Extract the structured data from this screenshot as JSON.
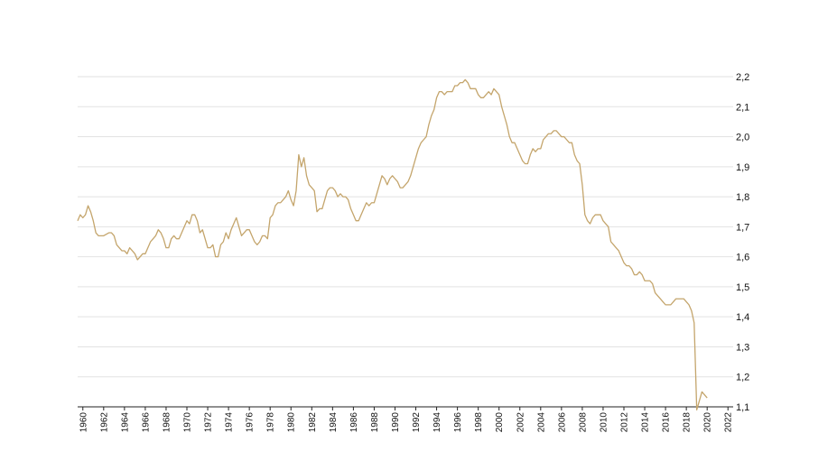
{
  "chart_data": {
    "type": "line",
    "title": "",
    "xlabel": "",
    "ylabel": "",
    "ylim": [
      1.1,
      2.2
    ],
    "xlim": [
      1959.5,
      2022.5
    ],
    "grid": true,
    "y_ticks": [
      {
        "value": 1.1,
        "label": "1,1"
      },
      {
        "value": 1.2,
        "label": "1,2"
      },
      {
        "value": 1.3,
        "label": "1,3"
      },
      {
        "value": 1.4,
        "label": "1,4"
      },
      {
        "value": 1.5,
        "label": "1,5"
      },
      {
        "value": 1.6,
        "label": "1,6"
      },
      {
        "value": 1.7,
        "label": "1,7"
      },
      {
        "value": 1.8,
        "label": "1,8"
      },
      {
        "value": 1.9,
        "label": "1,9"
      },
      {
        "value": 2.0,
        "label": "2,0"
      },
      {
        "value": 2.1,
        "label": "2,1"
      },
      {
        "value": 2.2,
        "label": "2,2"
      }
    ],
    "x_ticks": [
      1960,
      1962,
      1964,
      1966,
      1968,
      1970,
      1972,
      1974,
      1976,
      1978,
      1980,
      1982,
      1984,
      1986,
      1988,
      1990,
      1992,
      1994,
      1996,
      1998,
      2000,
      2002,
      2004,
      2006,
      2008,
      2010,
      2012,
      2014,
      2016,
      2018,
      2020,
      2022
    ],
    "series": [
      {
        "color": "#c4a56c",
        "points": [
          [
            1959.5,
            1.72
          ],
          [
            1959.75,
            1.74
          ],
          [
            1960.0,
            1.73
          ],
          [
            1960.25,
            1.74
          ],
          [
            1960.5,
            1.77
          ],
          [
            1960.75,
            1.75
          ],
          [
            1961.0,
            1.72
          ],
          [
            1961.25,
            1.68
          ],
          [
            1961.5,
            1.67
          ],
          [
            1962.0,
            1.67
          ],
          [
            1962.5,
            1.68
          ],
          [
            1962.75,
            1.68
          ],
          [
            1963.0,
            1.67
          ],
          [
            1963.25,
            1.64
          ],
          [
            1963.5,
            1.63
          ],
          [
            1963.75,
            1.62
          ],
          [
            1964.0,
            1.62
          ],
          [
            1964.25,
            1.61
          ],
          [
            1964.5,
            1.63
          ],
          [
            1964.75,
            1.62
          ],
          [
            1965.0,
            1.61
          ],
          [
            1965.25,
            1.59
          ],
          [
            1965.5,
            1.6
          ],
          [
            1965.75,
            1.61
          ],
          [
            1966.0,
            1.61
          ],
          [
            1966.25,
            1.63
          ],
          [
            1966.5,
            1.65
          ],
          [
            1966.75,
            1.66
          ],
          [
            1967.0,
            1.67
          ],
          [
            1967.25,
            1.69
          ],
          [
            1967.5,
            1.68
          ],
          [
            1967.75,
            1.66
          ],
          [
            1968.0,
            1.63
          ],
          [
            1968.25,
            1.63
          ],
          [
            1968.5,
            1.66
          ],
          [
            1968.75,
            1.67
          ],
          [
            1969.0,
            1.66
          ],
          [
            1969.25,
            1.66
          ],
          [
            1969.5,
            1.68
          ],
          [
            1969.75,
            1.7
          ],
          [
            1970.0,
            1.72
          ],
          [
            1970.25,
            1.71
          ],
          [
            1970.5,
            1.74
          ],
          [
            1970.75,
            1.74
          ],
          [
            1971.0,
            1.72
          ],
          [
            1971.25,
            1.68
          ],
          [
            1971.5,
            1.69
          ],
          [
            1971.75,
            1.66
          ],
          [
            1972.0,
            1.63
          ],
          [
            1972.25,
            1.63
          ],
          [
            1972.5,
            1.64
          ],
          [
            1972.75,
            1.6
          ],
          [
            1973.0,
            1.6
          ],
          [
            1973.25,
            1.64
          ],
          [
            1973.5,
            1.65
          ],
          [
            1973.75,
            1.68
          ],
          [
            1974.0,
            1.66
          ],
          [
            1974.25,
            1.69
          ],
          [
            1974.5,
            1.71
          ],
          [
            1974.75,
            1.73
          ],
          [
            1975.0,
            1.7
          ],
          [
            1975.25,
            1.67
          ],
          [
            1975.5,
            1.68
          ],
          [
            1975.75,
            1.69
          ],
          [
            1976.0,
            1.69
          ],
          [
            1976.25,
            1.67
          ],
          [
            1976.5,
            1.65
          ],
          [
            1976.75,
            1.64
          ],
          [
            1977.0,
            1.65
          ],
          [
            1977.25,
            1.67
          ],
          [
            1977.5,
            1.67
          ],
          [
            1977.75,
            1.66
          ],
          [
            1978.0,
            1.73
          ],
          [
            1978.25,
            1.74
          ],
          [
            1978.5,
            1.77
          ],
          [
            1978.75,
            1.78
          ],
          [
            1979.0,
            1.78
          ],
          [
            1979.25,
            1.79
          ],
          [
            1979.5,
            1.8
          ],
          [
            1979.75,
            1.82
          ],
          [
            1980.0,
            1.79
          ],
          [
            1980.25,
            1.77
          ],
          [
            1980.5,
            1.82
          ],
          [
            1980.75,
            1.94
          ],
          [
            1981.0,
            1.9
          ],
          [
            1981.25,
            1.93
          ],
          [
            1981.5,
            1.87
          ],
          [
            1981.75,
            1.84
          ],
          [
            1982.0,
            1.83
          ],
          [
            1982.25,
            1.82
          ],
          [
            1982.5,
            1.75
          ],
          [
            1982.75,
            1.76
          ],
          [
            1983.0,
            1.76
          ],
          [
            1983.25,
            1.79
          ],
          [
            1983.5,
            1.82
          ],
          [
            1983.75,
            1.83
          ],
          [
            1984.0,
            1.83
          ],
          [
            1984.25,
            1.82
          ],
          [
            1984.5,
            1.8
          ],
          [
            1984.75,
            1.81
          ],
          [
            1985.0,
            1.8
          ],
          [
            1985.25,
            1.8
          ],
          [
            1985.5,
            1.79
          ],
          [
            1985.75,
            1.76
          ],
          [
            1986.0,
            1.74
          ],
          [
            1986.25,
            1.72
          ],
          [
            1986.5,
            1.72
          ],
          [
            1986.75,
            1.74
          ],
          [
            1987.0,
            1.76
          ],
          [
            1987.25,
            1.78
          ],
          [
            1987.5,
            1.77
          ],
          [
            1987.75,
            1.78
          ],
          [
            1988.0,
            1.78
          ],
          [
            1988.25,
            1.81
          ],
          [
            1988.5,
            1.84
          ],
          [
            1988.75,
            1.87
          ],
          [
            1989.0,
            1.86
          ],
          [
            1989.25,
            1.84
          ],
          [
            1989.5,
            1.86
          ],
          [
            1989.75,
            1.87
          ],
          [
            1990.0,
            1.86
          ],
          [
            1990.25,
            1.85
          ],
          [
            1990.5,
            1.83
          ],
          [
            1990.75,
            1.83
          ],
          [
            1991.0,
            1.84
          ],
          [
            1991.25,
            1.85
          ],
          [
            1991.5,
            1.87
          ],
          [
            1991.75,
            1.9
          ],
          [
            1992.0,
            1.93
          ],
          [
            1992.25,
            1.96
          ],
          [
            1992.5,
            1.98
          ],
          [
            1992.75,
            1.99
          ],
          [
            1993.0,
            2.0
          ],
          [
            1993.25,
            2.04
          ],
          [
            1993.5,
            2.07
          ],
          [
            1993.75,
            2.09
          ],
          [
            1994.0,
            2.13
          ],
          [
            1994.25,
            2.15
          ],
          [
            1994.5,
            2.15
          ],
          [
            1994.75,
            2.14
          ],
          [
            1995.0,
            2.15
          ],
          [
            1995.25,
            2.15
          ],
          [
            1995.5,
            2.15
          ],
          [
            1995.75,
            2.17
          ],
          [
            1996.0,
            2.17
          ],
          [
            1996.25,
            2.18
          ],
          [
            1996.5,
            2.18
          ],
          [
            1996.75,
            2.19
          ],
          [
            1997.0,
            2.18
          ],
          [
            1997.25,
            2.16
          ],
          [
            1997.5,
            2.16
          ],
          [
            1997.75,
            2.16
          ],
          [
            1998.0,
            2.14
          ],
          [
            1998.25,
            2.13
          ],
          [
            1998.5,
            2.13
          ],
          [
            1998.75,
            2.14
          ],
          [
            1999.0,
            2.15
          ],
          [
            1999.25,
            2.14
          ],
          [
            1999.5,
            2.16
          ],
          [
            1999.75,
            2.15
          ],
          [
            2000.0,
            2.14
          ],
          [
            2000.25,
            2.1
          ],
          [
            2000.5,
            2.07
          ],
          [
            2000.75,
            2.04
          ],
          [
            2001.0,
            2.0
          ],
          [
            2001.25,
            1.98
          ],
          [
            2001.5,
            1.98
          ],
          [
            2001.75,
            1.96
          ],
          [
            2002.0,
            1.94
          ],
          [
            2002.25,
            1.92
          ],
          [
            2002.5,
            1.91
          ],
          [
            2002.75,
            1.91
          ],
          [
            2003.0,
            1.94
          ],
          [
            2003.25,
            1.96
          ],
          [
            2003.5,
            1.95
          ],
          [
            2003.75,
            1.96
          ],
          [
            2004.0,
            1.96
          ],
          [
            2004.25,
            1.99
          ],
          [
            2004.5,
            2.0
          ],
          [
            2004.75,
            2.01
          ],
          [
            2005.0,
            2.01
          ],
          [
            2005.25,
            2.02
          ],
          [
            2005.5,
            2.02
          ],
          [
            2005.75,
            2.01
          ],
          [
            2006.0,
            2.0
          ],
          [
            2006.25,
            2.0
          ],
          [
            2006.5,
            1.99
          ],
          [
            2006.75,
            1.98
          ],
          [
            2007.0,
            1.98
          ],
          [
            2007.25,
            1.94
          ],
          [
            2007.5,
            1.92
          ],
          [
            2007.75,
            1.91
          ],
          [
            2008.0,
            1.84
          ],
          [
            2008.25,
            1.74
          ],
          [
            2008.5,
            1.72
          ],
          [
            2008.75,
            1.71
          ],
          [
            2009.0,
            1.73
          ],
          [
            2009.25,
            1.74
          ],
          [
            2009.5,
            1.74
          ],
          [
            2009.75,
            1.74
          ],
          [
            2010.0,
            1.72
          ],
          [
            2010.25,
            1.71
          ],
          [
            2010.5,
            1.7
          ],
          [
            2010.75,
            1.65
          ],
          [
            2011.0,
            1.64
          ],
          [
            2011.25,
            1.63
          ],
          [
            2011.5,
            1.62
          ],
          [
            2011.75,
            1.6
          ],
          [
            2012.0,
            1.58
          ],
          [
            2012.25,
            1.57
          ],
          [
            2012.5,
            1.57
          ],
          [
            2012.75,
            1.56
          ],
          [
            2013.0,
            1.54
          ],
          [
            2013.25,
            1.54
          ],
          [
            2013.5,
            1.55
          ],
          [
            2013.75,
            1.54
          ],
          [
            2014.0,
            1.52
          ],
          [
            2014.25,
            1.52
          ],
          [
            2014.5,
            1.52
          ],
          [
            2014.75,
            1.51
          ],
          [
            2015.0,
            1.48
          ],
          [
            2015.25,
            1.47
          ],
          [
            2015.5,
            1.46
          ],
          [
            2015.75,
            1.45
          ],
          [
            2016.0,
            1.44
          ],
          [
            2016.25,
            1.44
          ],
          [
            2016.5,
            1.44
          ],
          [
            2016.75,
            1.45
          ],
          [
            2017.0,
            1.46
          ],
          [
            2017.25,
            1.46
          ],
          [
            2017.5,
            1.46
          ],
          [
            2017.75,
            1.46
          ],
          [
            2018.0,
            1.45
          ],
          [
            2018.25,
            1.44
          ],
          [
            2018.5,
            1.42
          ],
          [
            2018.75,
            1.38
          ],
          [
            2019.0,
            1.09
          ],
          [
            2019.25,
            1.12
          ],
          [
            2019.5,
            1.15
          ],
          [
            2019.75,
            1.14
          ],
          [
            2020.0,
            1.13
          ]
        ]
      }
    ]
  }
}
